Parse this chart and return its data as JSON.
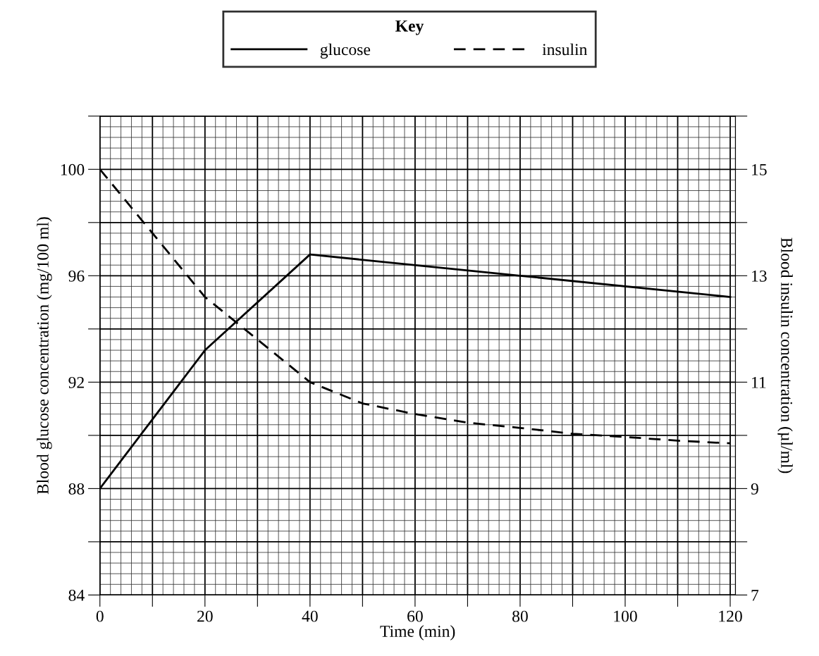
{
  "chart_data": {
    "type": "line",
    "xlabel": "Time (min)",
    "ylabel": "Blood glucose concentration (mg/100 ml)",
    "y2label": "Blood insulin concentration (µl/ml)",
    "legend_title": "Key",
    "legend": "top",
    "xlim": [
      0,
      121
    ],
    "ylim": [
      84,
      102
    ],
    "y2lim": [
      7,
      16
    ],
    "xticks": [
      0,
      {
        "value": 10,
        "label": null
      },
      20,
      {
        "value": 30,
        "label": null
      },
      40,
      {
        "value": 50,
        "label": null
      },
      60,
      {
        "value": 70,
        "label": null
      },
      80,
      {
        "value": 90,
        "label": null
      },
      100,
      {
        "value": 110,
        "label": null
      },
      120
    ],
    "yticks": [
      84,
      {
        "value": 86,
        "label": null
      },
      88,
      {
        "value": 90,
        "label": null
      },
      92,
      {
        "value": 94,
        "label": null
      },
      96,
      {
        "value": 98,
        "label": null
      },
      100,
      {
        "value": 102,
        "label": null
      }
    ],
    "y2ticks": [
      7,
      {
        "value": 8,
        "label": null
      },
      9,
      {
        "value": 10,
        "label": null
      },
      11,
      {
        "value": 12,
        "label": null
      },
      13,
      {
        "value": 14,
        "label": null
      },
      15,
      {
        "value": 16,
        "label": null
      }
    ],
    "grid": true,
    "series": [
      {
        "name": "glucose",
        "color": "#000000",
        "line_style": "solid",
        "x": [
          0,
          20,
          40,
          80,
          120
        ],
        "values": [
          88,
          93.2,
          96.8,
          96.0,
          95.2
        ]
      },
      {
        "name": "insulin",
        "color": "#000000",
        "line_style": "dashed",
        "axis": "y2",
        "x": [
          0,
          10,
          20,
          30,
          40,
          50,
          60,
          70,
          80,
          90,
          100,
          110,
          120
        ],
        "values": [
          15,
          13.8,
          12.6,
          11.8,
          11.0,
          10.6,
          10.4,
          10.24,
          10.14,
          10.03,
          9.97,
          9.9,
          9.85
        ]
      }
    ]
  }
}
